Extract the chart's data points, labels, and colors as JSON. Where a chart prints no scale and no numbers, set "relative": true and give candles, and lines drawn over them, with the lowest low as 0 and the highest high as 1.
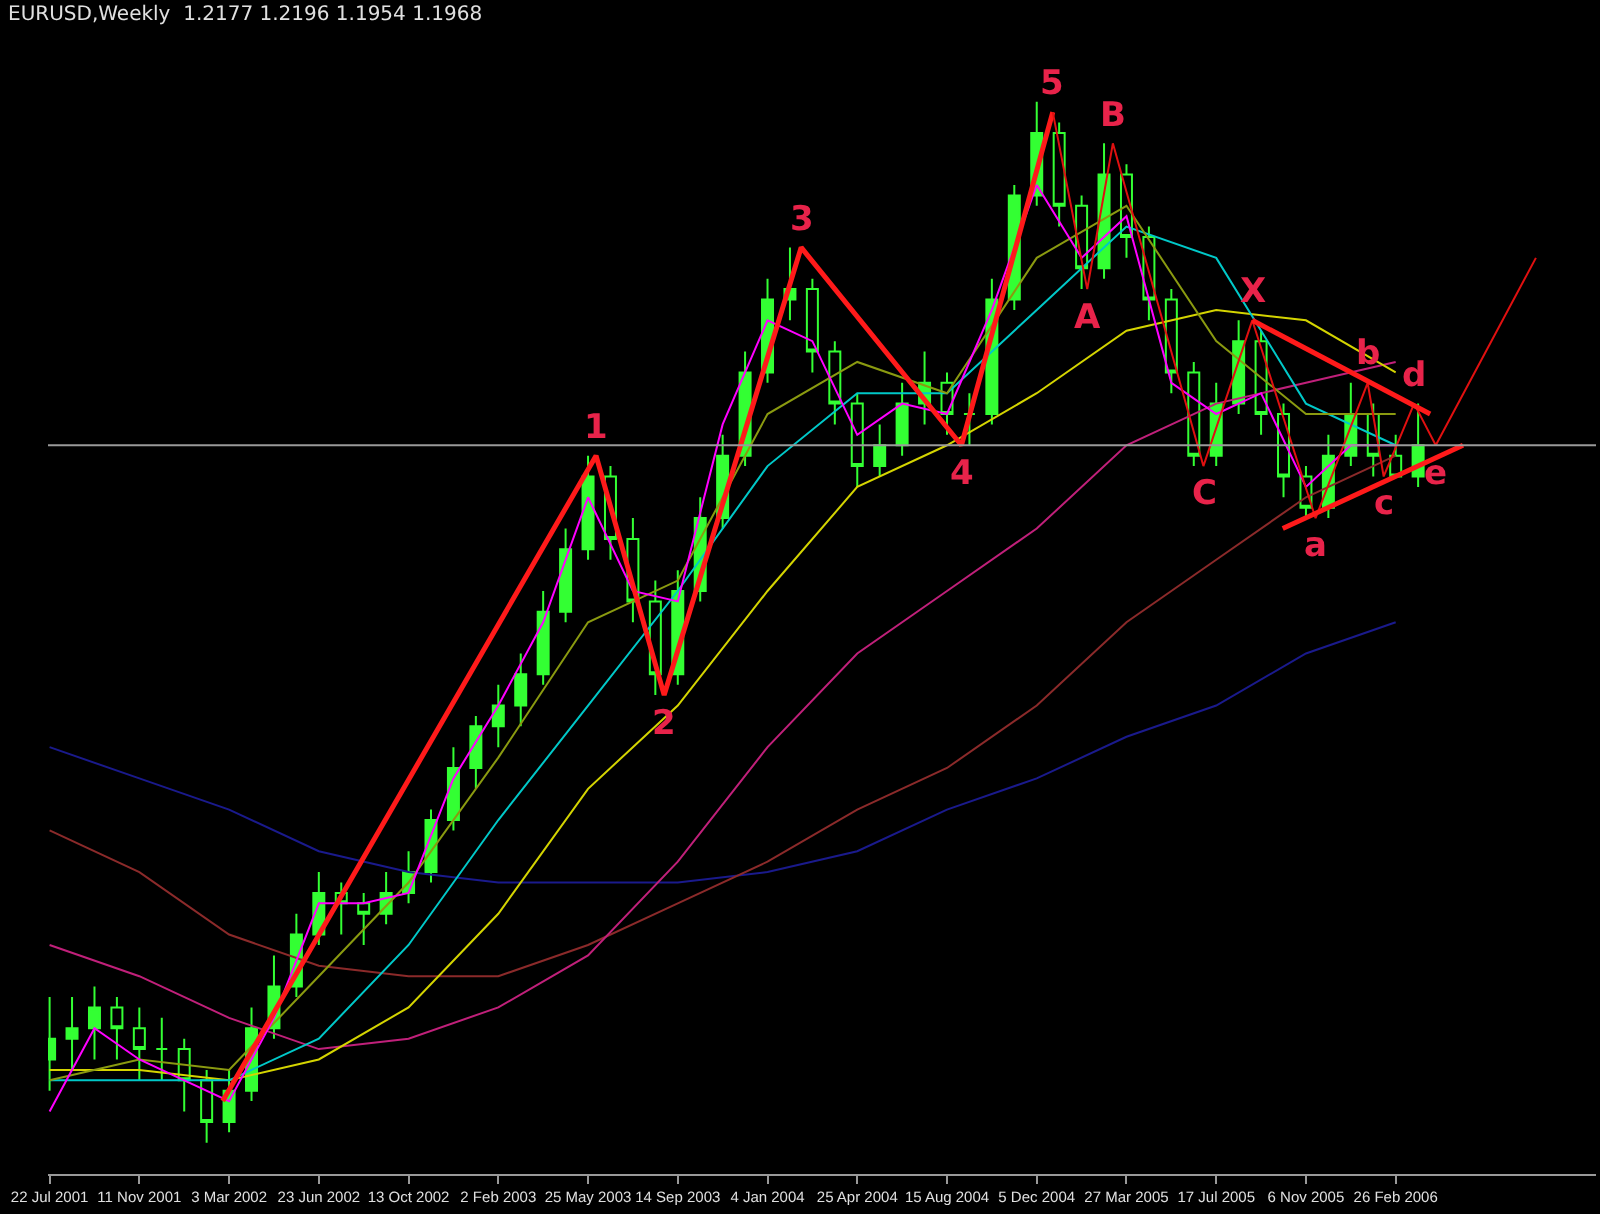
{
  "chart_data": {
    "type": "candlestick",
    "title": "EURUSD,Weekly  1.2177 1.2196 1.1954 1.1968",
    "relative": true,
    "color": "#33ff33",
    "x": [
      "2001-07-22",
      "2001-08-19",
      "2001-09-16",
      "2001-10-14",
      "2001-11-11",
      "2001-12-09",
      "2002-01-06",
      "2002-02-03",
      "2002-03-03",
      "2002-03-31",
      "2002-04-28",
      "2002-05-26",
      "2002-06-23",
      "2002-07-21",
      "2002-08-18",
      "2002-09-15",
      "2002-10-13",
      "2002-11-10",
      "2002-12-08",
      "2003-01-05",
      "2003-02-02",
      "2003-03-02",
      "2003-03-30",
      "2003-04-27",
      "2003-05-25",
      "2003-06-22",
      "2003-07-20",
      "2003-08-17",
      "2003-09-14",
      "2003-10-12",
      "2003-11-09",
      "2003-12-07",
      "2004-01-04",
      "2004-02-01",
      "2004-02-29",
      "2004-03-28",
      "2004-04-25",
      "2004-05-23",
      "2004-06-20",
      "2004-07-18",
      "2004-08-15",
      "2004-09-12",
      "2004-10-10",
      "2004-11-07",
      "2004-12-05",
      "2005-01-02",
      "2005-01-30",
      "2005-02-27",
      "2005-03-27",
      "2005-04-24",
      "2005-05-22",
      "2005-06-19",
      "2005-07-17",
      "2005-08-14",
      "2005-09-11",
      "2005-10-09",
      "2005-11-06",
      "2005-12-04",
      "2006-01-01",
      "2006-01-29",
      "2006-02-26",
      "2006-03-26"
    ],
    "ohlc": [
      [
        0.08,
        0.14,
        0.05,
        0.1
      ],
      [
        0.1,
        0.14,
        0.07,
        0.11
      ],
      [
        0.11,
        0.15,
        0.08,
        0.13
      ],
      [
        0.13,
        0.14,
        0.08,
        0.11
      ],
      [
        0.11,
        0.13,
        0.06,
        0.09
      ],
      [
        0.09,
        0.12,
        0.06,
        0.09
      ],
      [
        0.09,
        0.1,
        0.03,
        0.06
      ],
      [
        0.06,
        0.07,
        0,
        0.02
      ],
      [
        0.02,
        0.07,
        0.01,
        0.05
      ],
      [
        0.05,
        0.13,
        0.04,
        0.11
      ],
      [
        0.11,
        0.18,
        0.1,
        0.15
      ],
      [
        0.15,
        0.22,
        0.14,
        0.2
      ],
      [
        0.2,
        0.26,
        0.19,
        0.24
      ],
      [
        0.24,
        0.25,
        0.2,
        0.23
      ],
      [
        0.23,
        0.24,
        0.19,
        0.22
      ],
      [
        0.22,
        0.26,
        0.21,
        0.24
      ],
      [
        0.24,
        0.28,
        0.23,
        0.26
      ],
      [
        0.26,
        0.32,
        0.25,
        0.31
      ],
      [
        0.31,
        0.38,
        0.3,
        0.36
      ],
      [
        0.36,
        0.41,
        0.34,
        0.4
      ],
      [
        0.4,
        0.44,
        0.38,
        0.42
      ],
      [
        0.42,
        0.47,
        0.4,
        0.45
      ],
      [
        0.45,
        0.53,
        0.44,
        0.51
      ],
      [
        0.51,
        0.59,
        0.5,
        0.57
      ],
      [
        0.57,
        0.66,
        0.56,
        0.64
      ],
      [
        0.64,
        0.65,
        0.56,
        0.58
      ],
      [
        0.58,
        0.6,
        0.5,
        0.52
      ],
      [
        0.52,
        0.54,
        0.43,
        0.45
      ],
      [
        0.45,
        0.55,
        0.44,
        0.53
      ],
      [
        0.53,
        0.62,
        0.52,
        0.6
      ],
      [
        0.6,
        0.68,
        0.59,
        0.66
      ],
      [
        0.66,
        0.76,
        0.65,
        0.74
      ],
      [
        0.74,
        0.83,
        0.73,
        0.81
      ],
      [
        0.81,
        0.86,
        0.79,
        0.82
      ],
      [
        0.82,
        0.83,
        0.74,
        0.76
      ],
      [
        0.76,
        0.77,
        0.69,
        0.71
      ],
      [
        0.71,
        0.72,
        0.63,
        0.65
      ],
      [
        0.65,
        0.69,
        0.64,
        0.67
      ],
      [
        0.67,
        0.73,
        0.66,
        0.71
      ],
      [
        0.71,
        0.76,
        0.69,
        0.73
      ],
      [
        0.73,
        0.74,
        0.68,
        0.7
      ],
      [
        0.7,
        0.72,
        0.67,
        0.7
      ],
      [
        0.7,
        0.83,
        0.69,
        0.81
      ],
      [
        0.81,
        0.92,
        0.8,
        0.91
      ],
      [
        0.91,
        1,
        0.9,
        0.97
      ],
      [
        0.97,
        0.98,
        0.88,
        0.9
      ],
      [
        0.9,
        0.91,
        0.82,
        0.84
      ],
      [
        0.84,
        0.96,
        0.83,
        0.93
      ],
      [
        0.93,
        0.94,
        0.85,
        0.87
      ],
      [
        0.87,
        0.88,
        0.79,
        0.81
      ],
      [
        0.81,
        0.82,
        0.72,
        0.74
      ],
      [
        0.74,
        0.75,
        0.65,
        0.66
      ],
      [
        0.66,
        0.73,
        0.65,
        0.71
      ],
      [
        0.71,
        0.79,
        0.7,
        0.77
      ],
      [
        0.77,
        0.78,
        0.68,
        0.7
      ],
      [
        0.7,
        0.71,
        0.62,
        0.64
      ],
      [
        0.64,
        0.65,
        0.6,
        0.61
      ],
      [
        0.61,
        0.68,
        0.6,
        0.66
      ],
      [
        0.66,
        0.73,
        0.65,
        0.7
      ],
      [
        0.7,
        0.71,
        0.64,
        0.66
      ],
      [
        0.66,
        0.68,
        0.64,
        0.64
      ],
      [
        0.64,
        0.71,
        0.63,
        0.67
      ]
    ],
    "series": [
      {
        "type": "line",
        "color": "#1a1a8c",
        "x": [
          "2001-07-22",
          "2001-11-11",
          "2002-03-03",
          "2002-06-23",
          "2002-10-13",
          "2003-02-02",
          "2003-05-25",
          "2003-09-14",
          "2004-01-04",
          "2004-04-25",
          "2004-08-15",
          "2004-12-05",
          "2005-03-27",
          "2005-07-17",
          "2005-11-06",
          "2006-02-26"
        ],
        "values": [
          0.38,
          0.35,
          0.32,
          0.28,
          0.26,
          0.25,
          0.25,
          0.25,
          0.26,
          0.28,
          0.32,
          0.35,
          0.39,
          0.42,
          0.47,
          0.5
        ]
      },
      {
        "type": "line",
        "color": "#8b2a2a",
        "x": [
          "2001-07-22",
          "2001-11-11",
          "2002-03-03",
          "2002-06-23",
          "2002-10-13",
          "2003-02-02",
          "2003-05-25",
          "2003-09-14",
          "2004-01-04",
          "2004-04-25",
          "2004-08-15",
          "2004-12-05",
          "2005-03-27",
          "2005-07-17",
          "2005-11-06",
          "2006-02-26"
        ],
        "values": [
          0.3,
          0.26,
          0.2,
          0.17,
          0.16,
          0.16,
          0.19,
          0.23,
          0.27,
          0.32,
          0.36,
          0.42,
          0.5,
          0.56,
          0.62,
          0.66
        ]
      },
      {
        "type": "line",
        "color": "#c0207a",
        "x": [
          "2001-07-22",
          "2001-11-11",
          "2002-03-03",
          "2002-06-23",
          "2002-10-13",
          "2003-02-02",
          "2003-05-25",
          "2003-09-14",
          "2004-01-04",
          "2004-04-25",
          "2004-08-15",
          "2004-12-05",
          "2005-03-27",
          "2005-07-17",
          "2005-11-06",
          "2006-02-26"
        ],
        "values": [
          0.19,
          0.16,
          0.12,
          0.09,
          0.1,
          0.13,
          0.18,
          0.27,
          0.38,
          0.47,
          0.53,
          0.59,
          0.67,
          0.71,
          0.73,
          0.75
        ]
      },
      {
        "type": "line",
        "color": "#d4d400",
        "x": [
          "2001-07-22",
          "2001-11-11",
          "2002-03-03",
          "2002-06-23",
          "2002-10-13",
          "2003-02-02",
          "2003-05-25",
          "2003-09-14",
          "2004-01-04",
          "2004-04-25",
          "2004-08-15",
          "2004-12-05",
          "2005-03-27",
          "2005-07-17",
          "2005-11-06",
          "2006-02-26"
        ],
        "values": [
          0.07,
          0.07,
          0.06,
          0.08,
          0.13,
          0.22,
          0.34,
          0.42,
          0.53,
          0.63,
          0.67,
          0.72,
          0.78,
          0.8,
          0.79,
          0.74
        ]
      },
      {
        "type": "line",
        "color": "#00c8c8",
        "x": [
          "2001-07-22",
          "2001-11-11",
          "2002-03-03",
          "2002-06-23",
          "2002-10-13",
          "2003-02-02",
          "2003-05-25",
          "2003-09-14",
          "2004-01-04",
          "2004-04-25",
          "2004-08-15",
          "2004-12-05",
          "2005-03-27",
          "2005-07-17",
          "2005-11-06",
          "2006-02-26"
        ],
        "values": [
          0.06,
          0.06,
          0.06,
          0.1,
          0.19,
          0.31,
          0.42,
          0.53,
          0.65,
          0.72,
          0.72,
          0.8,
          0.88,
          0.85,
          0.71,
          0.67
        ]
      },
      {
        "type": "line",
        "color": "#8a9a10",
        "x": [
          "2001-07-22",
          "2001-11-11",
          "2002-03-03",
          "2002-06-23",
          "2002-10-13",
          "2003-02-02",
          "2003-05-25",
          "2003-09-14",
          "2004-01-04",
          "2004-04-25",
          "2004-08-15",
          "2004-12-05",
          "2005-03-27",
          "2005-07-17",
          "2005-11-06",
          "2006-02-26"
        ],
        "values": [
          0.06,
          0.08,
          0.07,
          0.16,
          0.25,
          0.37,
          0.5,
          0.54,
          0.7,
          0.75,
          0.72,
          0.85,
          0.9,
          0.77,
          0.7,
          0.7
        ]
      },
      {
        "type": "line",
        "color": "#ff00ff",
        "x": [
          "2001-07-22",
          "2001-09-16",
          "2001-11-11",
          "2002-01-06",
          "2002-03-03",
          "2002-04-28",
          "2002-06-23",
          "2002-08-18",
          "2002-10-13",
          "2002-12-08",
          "2003-02-02",
          "2003-03-30",
          "2003-05-25",
          "2003-07-20",
          "2003-09-14",
          "2003-11-09",
          "2004-01-04",
          "2004-02-29",
          "2004-04-25",
          "2004-06-20",
          "2004-08-15",
          "2004-10-10",
          "2004-12-05",
          "2005-01-30",
          "2005-03-27",
          "2005-05-22",
          "2005-07-17",
          "2005-09-11",
          "2005-11-06",
          "2006-01-01",
          "2006-02-26"
        ],
        "values": [
          0.03,
          0.11,
          0.08,
          0.06,
          0.04,
          0.12,
          0.23,
          0.23,
          0.24,
          0.35,
          0.42,
          0.5,
          0.62,
          0.53,
          0.52,
          0.69,
          0.79,
          0.77,
          0.68,
          0.71,
          0.7,
          0.8,
          0.92,
          0.85,
          0.89,
          0.73,
          0.7,
          0.72,
          0.63,
          0.67,
          0.67
        ]
      },
      {
        "type": "line",
        "color": "#ff1a1a",
        "x": [
          "2002-02-23",
          "2003-06-04",
          "2003-08-28",
          "2004-02-15",
          "2004-09-02",
          "2004-12-25"
        ],
        "values": [
          0.04,
          0.66,
          0.43,
          0.86,
          0.67,
          0.99
        ]
      },
      {
        "type": "line",
        "color": "#e01010",
        "x": [
          "2004-12-25",
          "2005-02-06",
          "2005-03-10",
          "2005-07-01",
          "2005-08-31",
          "2005-11-18",
          "2006-01-22",
          "2006-02-11",
          "2006-03-21",
          "2006-04-17",
          "2006-08-20"
        ],
        "values": [
          0.99,
          0.82,
          0.96,
          0.65,
          0.79,
          0.6,
          0.73,
          0.64,
          0.71,
          0.67,
          0.85
        ]
      },
      {
        "type": "line",
        "color": "#ff1a1a",
        "x": [
          "2005-08-31",
          "2006-04-10"
        ],
        "values": [
          0.79,
          0.7
        ]
      },
      {
        "type": "line",
        "color": "#ff1a1a",
        "x": [
          "2005-10-08",
          "2006-05-21"
        ],
        "values": [
          0.59,
          0.67
        ]
      }
    ],
    "ref_lines": [
      {
        "axis": "y",
        "value": 0.67,
        "color": "#9a9a9a"
      }
    ],
    "annotations": [
      {
        "text": "1",
        "x": "2003-06-04",
        "y": 0.66
      },
      {
        "text": "2",
        "x": "2003-08-28",
        "y": 0.43
      },
      {
        "text": "3",
        "x": "2004-02-15",
        "y": 0.86
      },
      {
        "text": "4",
        "x": "2004-09-02",
        "y": 0.67
      },
      {
        "text": "5",
        "x": "2004-12-25",
        "y": 0.99
      },
      {
        "text": "A",
        "x": "2005-02-06",
        "y": 0.82
      },
      {
        "text": "B",
        "x": "2005-03-10",
        "y": 0.96
      },
      {
        "text": "C",
        "x": "2005-07-01",
        "y": 0.65
      },
      {
        "text": "X",
        "x": "2005-08-31",
        "y": 0.79
      },
      {
        "text": "a",
        "x": "2005-11-18",
        "y": 0.6
      },
      {
        "text": "b",
        "x": "2006-01-22",
        "y": 0.73
      },
      {
        "text": "c",
        "x": "2006-02-11",
        "y": 0.64
      },
      {
        "text": "d",
        "x": "2006-03-21",
        "y": 0.71
      },
      {
        "text": "e",
        "x": "2006-04-17",
        "y": 0.67
      }
    ],
    "xlim": [
      "2001-07-20",
      "2006-11-03"
    ],
    "xticks": [
      {
        "value": "2001-07-22",
        "label": "22 Jul 2001"
      },
      {
        "value": "2001-11-11",
        "label": "11 Nov 2001"
      },
      {
        "value": "2002-03-03",
        "label": "3 Mar 2002"
      },
      {
        "value": "2002-06-23",
        "label": "23 Jun 2002"
      },
      {
        "value": "2002-10-13",
        "label": "13 Oct 2002"
      },
      {
        "value": "2003-02-02",
        "label": "2 Feb 2003"
      },
      {
        "value": "2003-05-25",
        "label": "25 May 2003"
      },
      {
        "value": "2003-09-14",
        "label": "14 Sep 2003"
      },
      {
        "value": "2004-01-04",
        "label": "4 Jan 2004"
      },
      {
        "value": "2004-04-25",
        "label": "25 Apr 2004"
      },
      {
        "value": "2004-08-15",
        "label": "15 Aug 2004"
      },
      {
        "value": "2004-12-05",
        "label": "5 Dec 2004"
      },
      {
        "value": "2005-03-27",
        "label": "27 Mar 2005"
      },
      {
        "value": "2005-07-17",
        "label": "17 Jul 2005"
      },
      {
        "value": "2005-11-06",
        "label": "6 Nov 2005"
      },
      {
        "value": "2006-02-26",
        "label": "26 Feb 2006"
      }
    ]
  }
}
